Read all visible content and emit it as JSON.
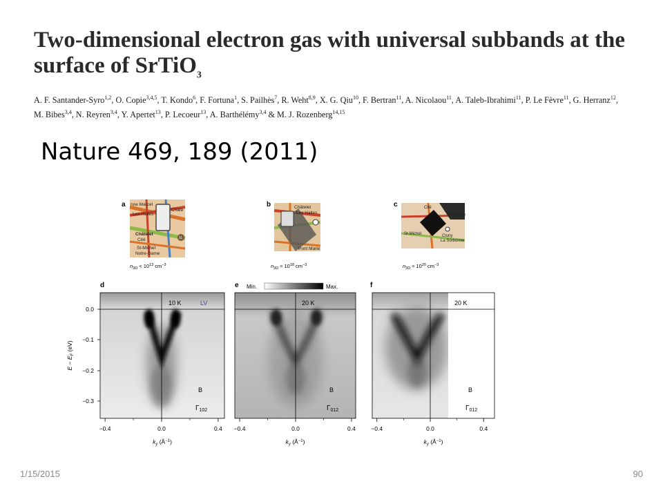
{
  "title": {
    "main": "Two-dimensional electron gas with universal subbands at the surface of SrTiO",
    "sub": "3"
  },
  "authors": [
    {
      "name": "A. F. Santander-Syro",
      "aff": "1,2"
    },
    {
      "name": "O. Copie",
      "aff": "3,4,5"
    },
    {
      "name": "T. Kondo",
      "aff": "6"
    },
    {
      "name": "F. Fortuna",
      "aff": "1"
    },
    {
      "name": "S. Pailhès",
      "aff": "7"
    },
    {
      "name": "R. Weht",
      "aff": "8,9"
    },
    {
      "name": "X. G. Qiu",
      "aff": "10"
    },
    {
      "name": "F. Bertran",
      "aff": "11"
    },
    {
      "name": "A. Nicolaou",
      "aff": "11"
    },
    {
      "name": "A. Taleb-Ibrahimi",
      "aff": "11"
    },
    {
      "name": "P. Le Fèvre",
      "aff": "11"
    },
    {
      "name": "G. Herranz",
      "aff": "12"
    },
    {
      "name": "M. Bibes",
      "aff": "3,4"
    },
    {
      "name": "N. Reyren",
      "aff": "3,4"
    },
    {
      "name": "Y. Apertet",
      "aff": "13"
    },
    {
      "name": "P. Lecoeur",
      "aff": "13"
    },
    {
      "name": "A. Barthélémy",
      "aff": "3,4"
    },
    {
      "name": "M. J. Rozenberg",
      "aff": "14,15",
      "prefix": "& "
    }
  ],
  "citation": "Nature 469, 189 (2011)",
  "footer": {
    "date": "1/15/2015",
    "page": "90"
  },
  "figure": {
    "top_panels": [
      {
        "letter": "a",
        "map_labels": [
          "nne Marcel",
          "Les Halles",
          "Châte",
          "Châtelet",
          "Cité",
          "St-Michel",
          "Notre-Dame",
          "11"
        ],
        "density_prefix": "n",
        "density_sub": "3D",
        "density_rel": " < 10",
        "density_exp": "13",
        "density_unit": " cm",
        "density_unit_exp": "−3"
      },
      {
        "letter": "b",
        "map_labels": [
          "Châtelet",
          "Les Halles",
          "Pont Marie"
        ],
        "density_prefix": "n",
        "density_sub": "3D",
        "density_rel": " ≈ 10",
        "density_exp": "18",
        "density_unit": " cm",
        "density_unit_exp": "−3"
      },
      {
        "letter": "c",
        "map_labels": [
          "Cité",
          "Pont Mar",
          "St-Michel",
          "Cluny",
          "La Sorbonne"
        ],
        "density_prefix": "n",
        "density_sub": "3D",
        "density_rel": " ≈ 10",
        "density_exp": "20",
        "density_unit": " cm",
        "density_unit_exp": "−3"
      }
    ],
    "colorbar": {
      "min": "Min.",
      "max": "Max."
    },
    "arpes_panels": [
      {
        "letter": "d",
        "temp": "10 K",
        "pol": "LV",
        "label": "B",
        "gamma": "Γ",
        "gamma_sub": "102"
      },
      {
        "letter": "e",
        "temp": "20 K",
        "pol": "",
        "label": "B",
        "gamma": "Γ",
        "gamma_sub": "012"
      },
      {
        "letter": "f",
        "temp": "20 K",
        "pol": "",
        "label": "B",
        "gamma": "Γ",
        "gamma_sub": "012"
      }
    ],
    "y_ticks": [
      "0.0",
      "−0.1",
      "−0.2",
      "−0.3"
    ],
    "x_ticks": [
      "−0.4",
      "0.0",
      "0.4"
    ],
    "y_label": {
      "main": "E − E",
      "sub": "F",
      "unit": " (eV)"
    },
    "x_label": {
      "main": "k",
      "sub": "y",
      "unit": " (Å",
      "unit_exp": "−1",
      "close": ")"
    },
    "colors": {
      "pol_label": "#2b4f9e",
      "map_orange": "#d8742a",
      "map_green": "#8cb94a",
      "map_red": "#c8402a"
    }
  }
}
